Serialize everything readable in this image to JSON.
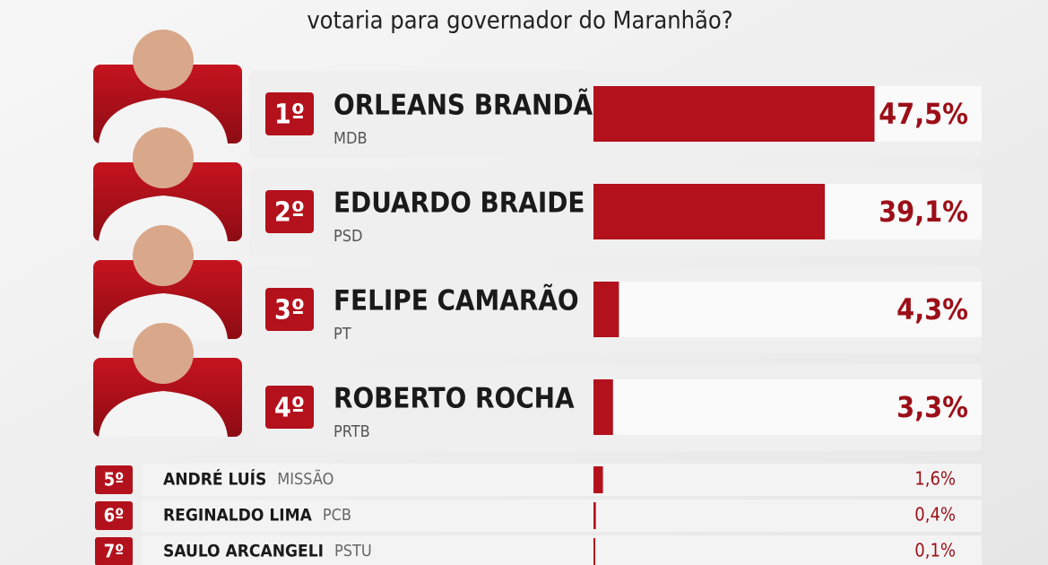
{
  "chart_data": {
    "type": "bar",
    "title": "votaria para governador do Maranhão?",
    "ranks": [
      "1º",
      "2º",
      "3º",
      "4º",
      "5º",
      "6º",
      "7º"
    ],
    "categories": [
      "ORLEANS BRANDÃO",
      "EDUARDO BRAIDE",
      "FELIPE CAMARÃO",
      "ROBERTO ROCHA",
      "ANDRÉ LUÍS",
      "REGINALDO LIMA",
      "SAULO ARCANGELI"
    ],
    "parties": [
      "MDB",
      "PSD",
      "PT",
      "PRTB",
      "MISSÃO",
      "PCB",
      "PSTU"
    ],
    "values": [
      47.5,
      39.1,
      4.3,
      3.3,
      1.6,
      0.4,
      0.1
    ],
    "value_labels": [
      "47,5%",
      "39,1%",
      "4,3%",
      "3,3%",
      "1,6%",
      "0,4%",
      "0,1%"
    ],
    "color": "#b3111c"
  }
}
